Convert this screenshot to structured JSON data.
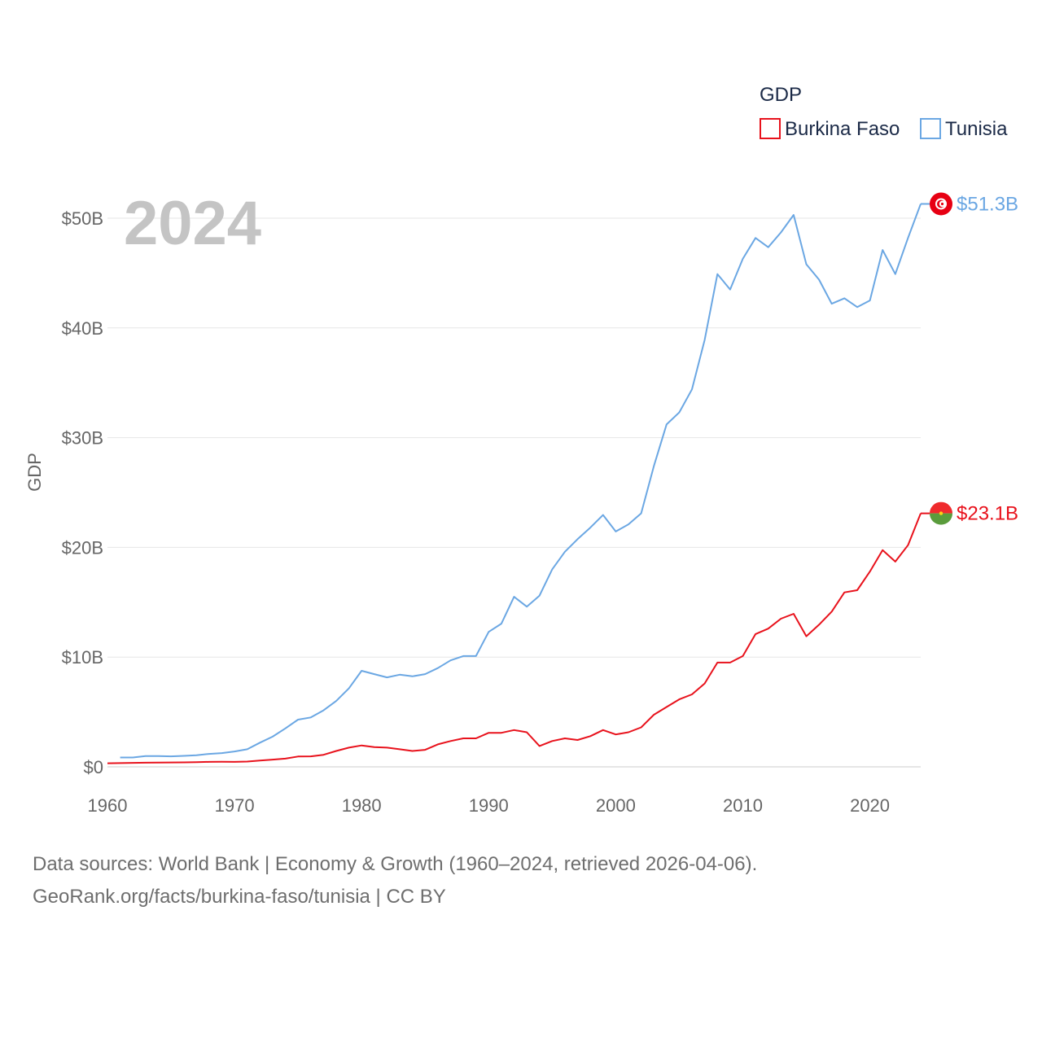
{
  "chart_data": {
    "type": "line",
    "title": "",
    "current_year_label": "2024",
    "xlabel": "",
    "ylabel": "GDP",
    "xlim": [
      1960,
      2024
    ],
    "ylim": [
      0,
      50
    ],
    "x_ticks": [
      1960,
      1970,
      1980,
      1990,
      2000,
      2010,
      2020
    ],
    "x_tick_labels": [
      "1960",
      "1970",
      "1980",
      "1990",
      "2000",
      "2010",
      "2020"
    ],
    "y_ticks": [
      0,
      10,
      20,
      30,
      40,
      50
    ],
    "y_tick_labels": [
      "$0",
      "$10B",
      "$20B",
      "$30B",
      "$40B",
      "$50B"
    ],
    "legend": {
      "title": "GDP",
      "position": "top-right"
    },
    "grid": true,
    "series": [
      {
        "name": "Burkina Faso",
        "color": "#e8121c",
        "flag": "burkina-faso-flag",
        "end_label": "$23.1B",
        "x": [
          1960,
          1961,
          1962,
          1963,
          1964,
          1965,
          1966,
          1967,
          1968,
          1969,
          1970,
          1971,
          1972,
          1973,
          1974,
          1975,
          1976,
          1977,
          1978,
          1979,
          1980,
          1981,
          1982,
          1983,
          1984,
          1985,
          1986,
          1987,
          1988,
          1989,
          1990,
          1991,
          1992,
          1993,
          1994,
          1995,
          1996,
          1997,
          1998,
          1999,
          2000,
          2001,
          2002,
          2003,
          2004,
          2005,
          2006,
          2007,
          2008,
          2009,
          2010,
          2011,
          2012,
          2013,
          2014,
          2015,
          2016,
          2017,
          2018,
          2019,
          2020,
          2021,
          2022,
          2023,
          2024
        ],
        "values": [
          0.33,
          0.34,
          0.36,
          0.38,
          0.39,
          0.4,
          0.41,
          0.43,
          0.45,
          0.46,
          0.45,
          0.48,
          0.57,
          0.66,
          0.75,
          0.94,
          0.96,
          1.1,
          1.45,
          1.75,
          1.95,
          1.8,
          1.75,
          1.6,
          1.45,
          1.55,
          2.05,
          2.35,
          2.6,
          2.6,
          3.1,
          3.1,
          3.35,
          3.15,
          1.9,
          2.35,
          2.6,
          2.45,
          2.8,
          3.35,
          2.95,
          3.15,
          3.6,
          4.75,
          5.45,
          6.15,
          6.6,
          7.6,
          9.5,
          9.5,
          10.1,
          12.1,
          12.6,
          13.5,
          13.95,
          11.9,
          12.95,
          14.15,
          15.9,
          16.1,
          17.8,
          19.75,
          18.7,
          20.2,
          23.1
        ]
      },
      {
        "name": "Tunisia",
        "color": "#6ba7e3",
        "flag": "tunisia-flag",
        "end_label": "$51.3B",
        "x": [
          1961,
          1962,
          1963,
          1964,
          1965,
          1966,
          1967,
          1968,
          1969,
          1970,
          1971,
          1972,
          1973,
          1974,
          1975,
          1976,
          1977,
          1978,
          1979,
          1980,
          1981,
          1982,
          1983,
          1984,
          1985,
          1986,
          1987,
          1988,
          1989,
          1990,
          1991,
          1992,
          1993,
          1994,
          1995,
          1996,
          1997,
          1998,
          1999,
          2000,
          2001,
          2002,
          2003,
          2004,
          2005,
          2006,
          2007,
          2008,
          2009,
          2010,
          2011,
          2012,
          2013,
          2014,
          2015,
          2016,
          2017,
          2018,
          2019,
          2020,
          2021,
          2022,
          2023,
          2024
        ],
        "values": [
          0.85,
          0.85,
          0.98,
          0.98,
          0.96,
          1.0,
          1.06,
          1.18,
          1.25,
          1.4,
          1.6,
          2.2,
          2.75,
          3.5,
          4.3,
          4.5,
          5.15,
          6.0,
          7.15,
          8.75,
          8.45,
          8.15,
          8.4,
          8.25,
          8.45,
          9.0,
          9.7,
          10.1,
          10.1,
          12.3,
          13.05,
          15.5,
          14.6,
          15.6,
          18.0,
          19.6,
          20.75,
          21.8,
          22.95,
          21.45,
          22.1,
          23.1,
          27.4,
          31.2,
          32.3,
          34.4,
          38.9,
          44.9,
          43.5,
          46.3,
          48.2,
          47.35,
          48.7,
          50.3,
          45.8,
          44.4,
          42.2,
          42.7,
          41.9,
          42.5,
          47.1,
          44.9,
          48.2,
          51.3
        ]
      }
    ]
  },
  "footer": {
    "line1": "Data sources: World Bank | Economy & Growth (1960–2024, retrieved 2026-04-06).",
    "line2": "GeoRank.org/facts/burkina-faso/tunisia | CC BY"
  }
}
